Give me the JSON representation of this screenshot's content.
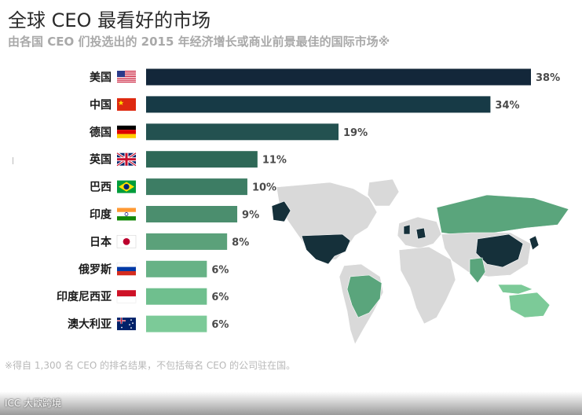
{
  "title": "全球 CEO 最看好的市场",
  "subtitle": "由各国 CEO 们投选出的 2015 年经济增长或商业前景最佳的国际市场※",
  "footnote": "※得自 1,300 名 CEO 的排名结果，不包括每名 CEO 的公司驻在国。",
  "watermark": "ICC 大歐跨境",
  "chart_data": {
    "type": "bar",
    "orientation": "horizontal",
    "categories": [
      "美国",
      "中国",
      "德国",
      "英国",
      "巴西",
      "印度",
      "日本",
      "俄罗斯",
      "印度尼西亚",
      "澳大利亚"
    ],
    "values": [
      38,
      34,
      19,
      11,
      10,
      9,
      8,
      6,
      6,
      6
    ],
    "value_suffix": "%",
    "bar_colors": [
      "#13273a",
      "#173a46",
      "#235150",
      "#2e6857",
      "#3d7d64",
      "#4b8e6e",
      "#5ba17a",
      "#67b286",
      "#6fbf8e",
      "#7cca98"
    ],
    "title": "",
    "xlabel": "",
    "ylabel": "",
    "xlim": [
      0,
      38
    ],
    "grid": false,
    "legend": "none"
  },
  "flags": [
    "us-flag-icon",
    "china-flag-icon",
    "germany-flag-icon",
    "uk-flag-icon",
    "brazil-flag-icon",
    "india-flag-icon",
    "japan-flag-icon",
    "russia-flag-icon",
    "indonesia-flag-icon",
    "australia-flag-icon"
  ],
  "map_colors": {
    "land": "#d9d9d9",
    "highlight_dark": "#15303a",
    "highlight_green": "#5aa57c",
    "highlight_light": "#7cca98"
  }
}
